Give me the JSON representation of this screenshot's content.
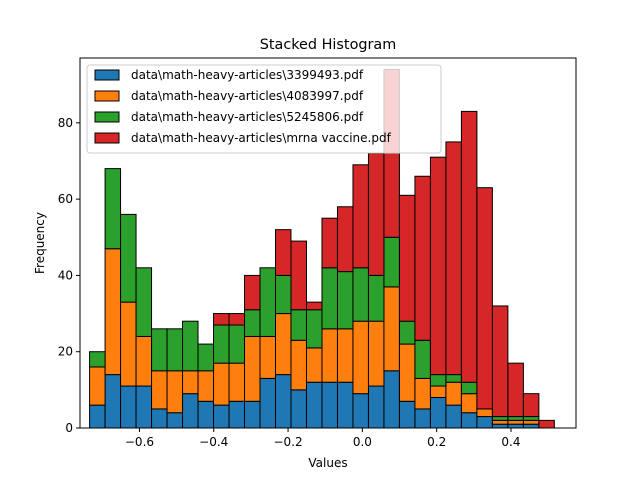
{
  "chart_data": {
    "type": "bar",
    "stacked": true,
    "title": "Stacked Histogram",
    "xlabel": "Values",
    "ylabel": "Frequency",
    "xlim": [
      -0.76,
      0.575
    ],
    "ylim": [
      0,
      97
    ],
    "xticks": [
      -0.6,
      -0.4,
      -0.2,
      0.0,
      0.2,
      0.4
    ],
    "xtick_labels": [
      "−0.6",
      "−0.4",
      "−0.2",
      "0.0",
      "0.2",
      "0.4"
    ],
    "yticks": [
      0,
      20,
      40,
      60,
      80
    ],
    "ytick_labels": [
      "0",
      "20",
      "40",
      "60",
      "80"
    ],
    "grid": false,
    "legend_position": "top-left",
    "bin_edges": [
      -0.7342,
      -0.6925,
      -0.6508,
      -0.6091,
      -0.5674,
      -0.5257,
      -0.484,
      -0.4423,
      -0.4006,
      -0.3589,
      -0.3172,
      -0.2755,
      -0.2338,
      -0.1921,
      -0.1504,
      -0.1087,
      -0.067,
      -0.0253,
      0.0164,
      0.0581,
      0.0998,
      0.1415,
      0.1832,
      0.2249,
      0.2666,
      0.3083,
      0.35,
      0.3917,
      0.4334,
      0.4751,
      0.5168
    ],
    "series": [
      {
        "name": "data\\math-heavy-articles\\3399493.pdf",
        "color": "#1f77b4",
        "values": [
          6,
          14,
          11,
          11,
          5,
          4,
          9,
          7,
          6,
          7,
          7,
          13,
          14,
          10,
          12,
          12,
          12,
          9,
          11,
          15,
          7,
          5,
          8,
          6,
          4,
          3,
          1,
          1,
          1,
          0
        ]
      },
      {
        "name": "data\\math-heavy-articles\\4083997.pdf",
        "color": "#ff7f0e",
        "values": [
          10,
          33,
          22,
          13,
          10,
          11,
          6,
          8,
          11,
          10,
          17,
          11,
          16,
          13,
          9,
          14,
          14,
          19,
          17,
          22,
          15,
          8,
          3,
          6,
          5,
          2,
          1,
          1,
          1,
          0
        ]
      },
      {
        "name": "data\\math-heavy-articles\\5245806.pdf",
        "color": "#2ca02c",
        "values": [
          4,
          21,
          23,
          18,
          11,
          11,
          13,
          7,
          10,
          10,
          7,
          18,
          10,
          8,
          10,
          16,
          15,
          14,
          12,
          13,
          6,
          10,
          3,
          2,
          3,
          0,
          1,
          1,
          1,
          0
        ]
      },
      {
        "name": "data\\math-heavy-articles\\mrna vaccine.pdf",
        "color": "#d62728",
        "values": [
          0,
          0,
          0,
          0,
          0,
          0,
          0,
          0,
          3,
          3,
          9,
          0,
          12,
          18,
          2,
          13,
          17,
          27,
          32,
          44,
          33,
          43,
          57,
          61,
          71,
          58,
          29,
          14,
          6,
          2
        ]
      }
    ]
  }
}
